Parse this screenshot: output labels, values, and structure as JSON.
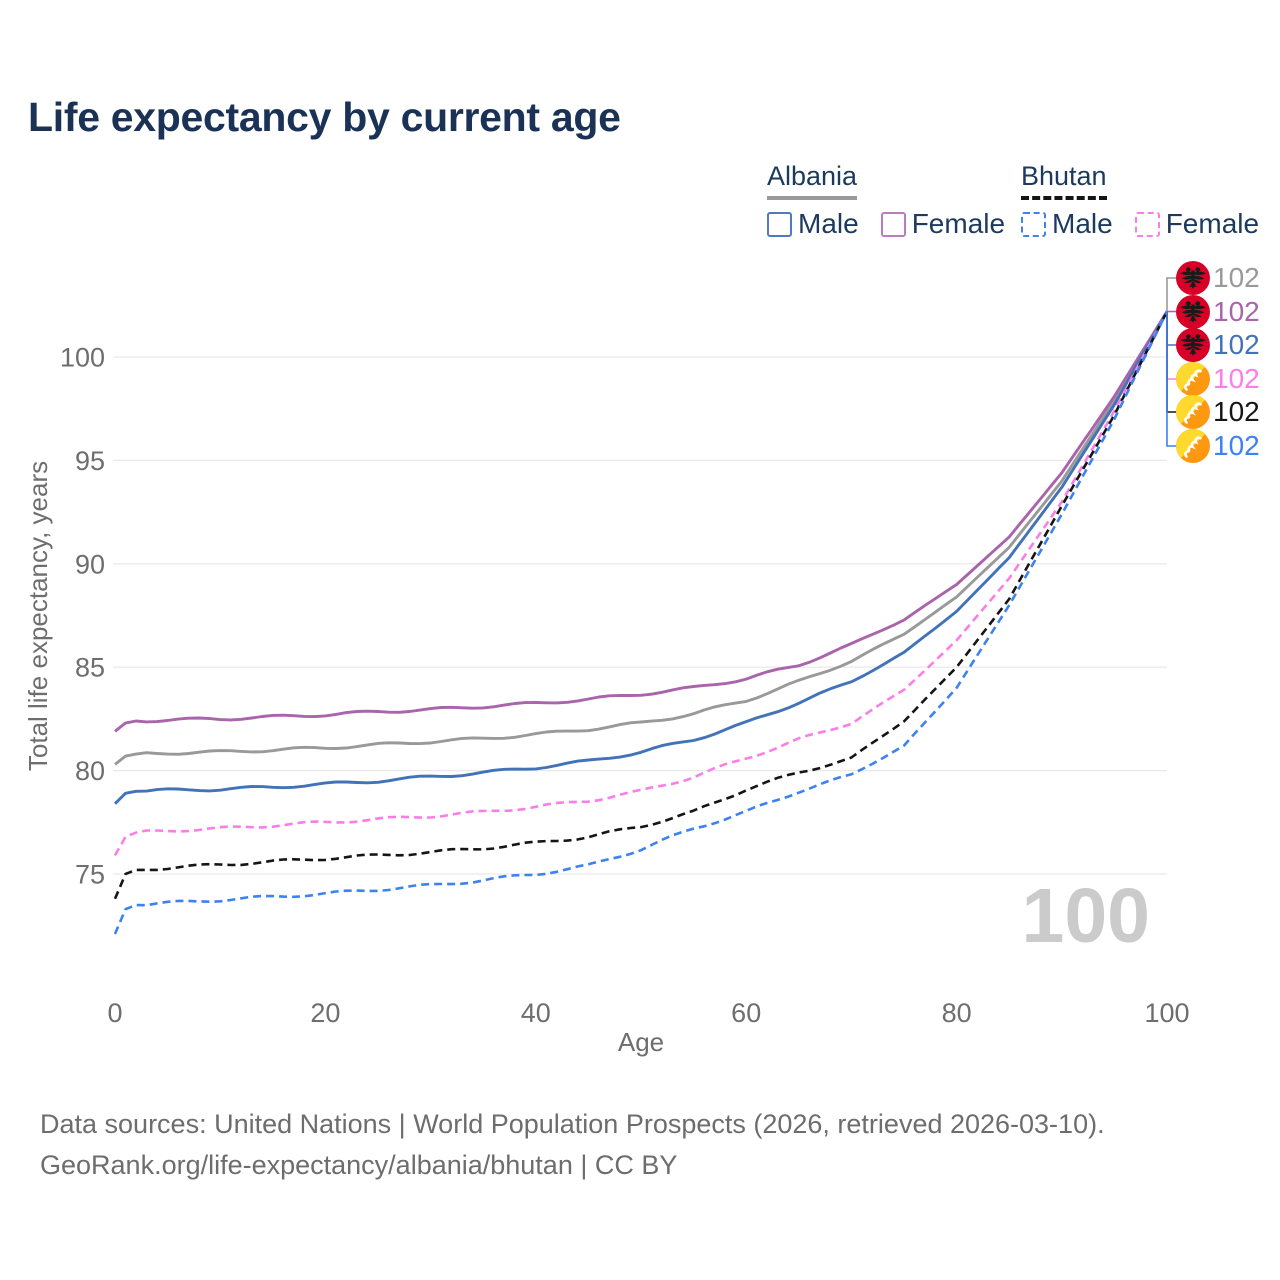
{
  "title": "Life expectancy by current age",
  "legend": {
    "groups": [
      {
        "country": "Albania",
        "line_style": "solid",
        "line_color": "#999999",
        "items": [
          {
            "label": "Male",
            "color": "#4d7ac2",
            "style": "solid"
          },
          {
            "label": "Female",
            "color": "#bd7abd",
            "style": "solid"
          }
        ]
      },
      {
        "country": "Bhutan",
        "line_style": "dashed",
        "line_color": "#151515",
        "items": [
          {
            "label": "Male",
            "color": "#3c82f0",
            "style": "dashed"
          },
          {
            "label": "Female",
            "color": "#fb7de8",
            "style": "dashed"
          }
        ]
      }
    ]
  },
  "chart_data": {
    "type": "line",
    "title": "Life expectancy by current age",
    "xlabel": "Age",
    "ylabel": "Total life expectancy, years",
    "x_ticks": [
      0,
      20,
      40,
      60,
      80,
      100
    ],
    "y_ticks": [
      75,
      80,
      85,
      90,
      95,
      100
    ],
    "xlim": [
      0,
      100
    ],
    "ylim": [
      71.5,
      103
    ],
    "grid": "horizontal",
    "hover_age_label": "100",
    "ages": [
      0,
      1,
      2,
      5,
      10,
      15,
      20,
      25,
      30,
      35,
      40,
      45,
      50,
      55,
      60,
      65,
      70,
      75,
      80,
      85,
      90,
      95,
      100
    ],
    "series": [
      {
        "id": "albania-both",
        "name": "Albania",
        "country": "Albania",
        "sex": "Both",
        "style": "solid",
        "color": "#999999",
        "end_label": "102",
        "flag": "albania",
        "values": [
          80.3,
          80.7,
          80.8,
          80.85,
          80.9,
          81.0,
          81.1,
          81.25,
          81.4,
          81.55,
          81.75,
          82.0,
          82.3,
          82.75,
          83.4,
          84.3,
          85.3,
          86.6,
          88.4,
          90.8,
          94.0,
          97.9,
          102.2
        ]
      },
      {
        "id": "albania-female",
        "name": "Albania Female",
        "country": "Albania",
        "sex": "Female",
        "style": "solid",
        "color": "#a964ac",
        "end_label": "102",
        "flag": "albania",
        "values": [
          81.9,
          82.3,
          82.4,
          82.45,
          82.5,
          82.6,
          82.7,
          82.85,
          82.95,
          83.1,
          83.25,
          83.45,
          83.7,
          84.0,
          84.45,
          85.1,
          86.1,
          87.3,
          89.0,
          91.3,
          94.4,
          98.1,
          102.2
        ]
      },
      {
        "id": "albania-male",
        "name": "Albania Male",
        "country": "Albania",
        "sex": "Male",
        "style": "solid",
        "color": "#4273b8",
        "end_label": "102",
        "flag": "albania",
        "values": [
          78.4,
          78.9,
          79.0,
          79.05,
          79.1,
          79.2,
          79.35,
          79.5,
          79.7,
          79.9,
          80.15,
          80.45,
          80.9,
          81.5,
          82.3,
          83.3,
          84.3,
          85.7,
          87.7,
          90.3,
          93.7,
          97.7,
          102.2
        ]
      },
      {
        "id": "bhutan-female",
        "name": "Bhutan Female",
        "country": "Bhutan",
        "sex": "Female",
        "style": "dashed",
        "color": "#fb7de8",
        "end_label": "102",
        "flag": "bhutan",
        "values": [
          75.9,
          76.8,
          77.0,
          77.1,
          77.2,
          77.35,
          77.5,
          77.65,
          77.8,
          78.0,
          78.25,
          78.55,
          79.0,
          79.7,
          80.6,
          81.5,
          82.3,
          83.9,
          86.3,
          89.3,
          93.0,
          97.4,
          102.2
        ]
      },
      {
        "id": "bhutan-both",
        "name": "Bhutan",
        "country": "Bhutan",
        "sex": "Both",
        "style": "dashed",
        "color": "#151515",
        "end_label": "102",
        "flag": "bhutan",
        "values": [
          73.8,
          75.0,
          75.2,
          75.3,
          75.45,
          75.6,
          75.75,
          75.9,
          76.05,
          76.25,
          76.5,
          76.8,
          77.3,
          78.0,
          79.1,
          79.9,
          80.6,
          82.4,
          85.0,
          88.3,
          92.8,
          97.2,
          102.2
        ]
      },
      {
        "id": "bhutan-male",
        "name": "Bhutan Male",
        "country": "Bhutan",
        "sex": "Male",
        "style": "dashed",
        "color": "#3c82f0",
        "end_label": "102",
        "flag": "bhutan",
        "values": [
          72.1,
          73.3,
          73.5,
          73.6,
          73.75,
          73.9,
          74.05,
          74.25,
          74.45,
          74.7,
          75.0,
          75.4,
          76.2,
          77.2,
          78.0,
          79.0,
          79.8,
          81.2,
          84.0,
          88.0,
          92.4,
          97.0,
          102.2
        ]
      }
    ]
  },
  "footer": {
    "line1": "Data sources: United Nations | World Population Prospects (2026, retrieved 2026-03-10).",
    "line2": "GeoRank.org/life-expectancy/albania/bhutan | CC BY"
  }
}
